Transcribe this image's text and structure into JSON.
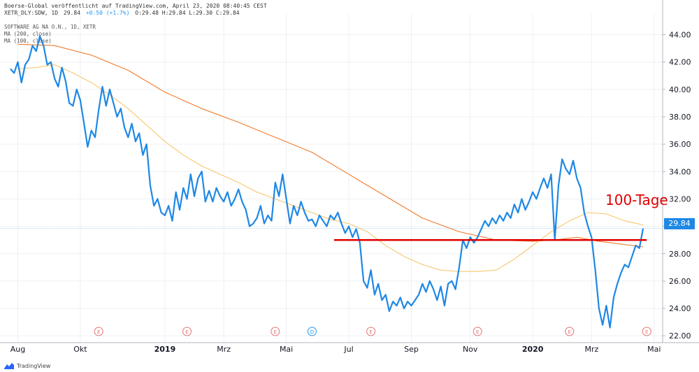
{
  "header": {
    "attribution": "Boerse-Global veröffentlicht auf TradingView.com, April 23, 2020 08:40:45 CEST",
    "symbol_line": "XETR_DLY:SDW, 1D",
    "last": "29.84",
    "change": "+0.50 (+1.7%)",
    "ohlc": "O:29.48 H:29.84 L:29.30 C:29.84"
  },
  "legend": {
    "title": "SOFTWARE AG NA O.N., 1D, XETR",
    "ma200": "MA (200, close)",
    "ma100": "MA (100, close)"
  },
  "annotation": "100-Tage",
  "price_badge": "29.84",
  "footer": {
    "brand": "TradingView"
  },
  "colors": {
    "price": "#1e88e5",
    "ma200": "#f07b2a",
    "ma100": "#f7c770",
    "support": "#e00000",
    "grid": "#eef0f3"
  },
  "chart_data": {
    "type": "line",
    "ylim": [
      21.5,
      45
    ],
    "y_ticks": [
      "44.00",
      "42.00",
      "40.00",
      "38.00",
      "36.00",
      "34.00",
      "32.00",
      "30.00",
      "28.00",
      "26.00",
      "24.00",
      "22.00"
    ],
    "x_ticks": [
      {
        "label": "Aug",
        "x": 2018.6
      },
      {
        "label": "Okt",
        "x": 2018.77
      },
      {
        "label": "2019",
        "x": 2019.0
      },
      {
        "label": "Mrz",
        "x": 2019.16
      },
      {
        "label": "Mai",
        "x": 2019.33
      },
      {
        "label": "Jul",
        "x": 2019.5
      },
      {
        "label": "Sep",
        "x": 2019.67
      },
      {
        "label": "Nov",
        "x": 2019.83
      },
      {
        "label": "2020",
        "x": 2020.0
      },
      {
        "label": "Mrz",
        "x": 2020.16
      },
      {
        "label": "Mai",
        "x": 2020.33
      }
    ],
    "event_markers": [
      {
        "label": "E",
        "x": 2018.82
      },
      {
        "label": "E",
        "x": 2019.06
      },
      {
        "label": "E",
        "x": 2019.3
      },
      {
        "label": "D",
        "x": 2019.4
      },
      {
        "label": "E",
        "x": 2019.56
      },
      {
        "label": "E",
        "x": 2019.85
      },
      {
        "label": "E",
        "x": 2020.1
      },
      {
        "label": "E",
        "x": 2020.31
      }
    ],
    "series": [
      {
        "name": "SOFTWARE AG NA O.N., 1D, XETR",
        "points": [
          [
            2018.58,
            41.5
          ],
          [
            2018.59,
            41.2
          ],
          [
            2018.6,
            42.0
          ],
          [
            2018.61,
            40.5
          ],
          [
            2018.62,
            41.8
          ],
          [
            2018.63,
            42.2
          ],
          [
            2018.64,
            43.2
          ],
          [
            2018.65,
            42.8
          ],
          [
            2018.66,
            43.9
          ],
          [
            2018.67,
            43.2
          ],
          [
            2018.68,
            41.8
          ],
          [
            2018.69,
            42.0
          ],
          [
            2018.7,
            40.8
          ],
          [
            2018.71,
            40.2
          ],
          [
            2018.72,
            41.6
          ],
          [
            2018.73,
            40.6
          ],
          [
            2018.74,
            39.0
          ],
          [
            2018.75,
            38.8
          ],
          [
            2018.76,
            40.0
          ],
          [
            2018.77,
            39.2
          ],
          [
            2018.78,
            37.5
          ],
          [
            2018.79,
            35.8
          ],
          [
            2018.8,
            37.0
          ],
          [
            2018.81,
            36.5
          ],
          [
            2018.82,
            38.5
          ],
          [
            2018.83,
            40.2
          ],
          [
            2018.84,
            38.8
          ],
          [
            2018.85,
            40.0
          ],
          [
            2018.86,
            39.0
          ],
          [
            2018.87,
            38.0
          ],
          [
            2018.88,
            38.6
          ],
          [
            2018.89,
            37.2
          ],
          [
            2018.9,
            36.5
          ],
          [
            2018.91,
            37.5
          ],
          [
            2018.92,
            36.2
          ],
          [
            2018.93,
            36.8
          ],
          [
            2018.94,
            35.2
          ],
          [
            2018.95,
            36.0
          ],
          [
            2018.96,
            33.0
          ],
          [
            2018.97,
            31.5
          ],
          [
            2018.98,
            32.0
          ],
          [
            2018.99,
            31.0
          ],
          [
            2019.0,
            30.8
          ],
          [
            2019.01,
            31.5
          ],
          [
            2019.02,
            30.4
          ],
          [
            2019.03,
            32.5
          ],
          [
            2019.04,
            31.2
          ],
          [
            2019.05,
            32.8
          ],
          [
            2019.06,
            32.0
          ],
          [
            2019.07,
            33.8
          ],
          [
            2019.08,
            32.2
          ],
          [
            2019.09,
            33.5
          ],
          [
            2019.1,
            34.0
          ],
          [
            2019.11,
            31.8
          ],
          [
            2019.12,
            32.6
          ],
          [
            2019.13,
            31.8
          ],
          [
            2019.14,
            32.8
          ],
          [
            2019.15,
            32.2
          ],
          [
            2019.16,
            31.8
          ],
          [
            2019.17,
            32.5
          ],
          [
            2019.18,
            31.5
          ],
          [
            2019.19,
            32.0
          ],
          [
            2019.2,
            32.7
          ],
          [
            2019.21,
            31.8
          ],
          [
            2019.22,
            31.2
          ],
          [
            2019.23,
            30.0
          ],
          [
            2019.24,
            30.2
          ],
          [
            2019.25,
            30.6
          ],
          [
            2019.26,
            31.5
          ],
          [
            2019.27,
            30.2
          ],
          [
            2019.28,
            30.8
          ],
          [
            2019.29,
            30.4
          ],
          [
            2019.3,
            33.2
          ],
          [
            2019.31,
            32.2
          ],
          [
            2019.32,
            33.8
          ],
          [
            2019.33,
            32.0
          ],
          [
            2019.34,
            30.2
          ],
          [
            2019.35,
            31.5
          ],
          [
            2019.36,
            30.8
          ],
          [
            2019.37,
            31.8
          ],
          [
            2019.38,
            31.0
          ],
          [
            2019.39,
            30.4
          ],
          [
            2019.4,
            30.5
          ],
          [
            2019.41,
            30.0
          ],
          [
            2019.42,
            30.8
          ],
          [
            2019.43,
            30.4
          ],
          [
            2019.44,
            30.0
          ],
          [
            2019.45,
            30.8
          ],
          [
            2019.46,
            30.5
          ],
          [
            2019.47,
            31.0
          ],
          [
            2019.48,
            30.2
          ],
          [
            2019.49,
            29.5
          ],
          [
            2019.5,
            30.0
          ],
          [
            2019.51,
            29.2
          ],
          [
            2019.52,
            29.8
          ],
          [
            2019.53,
            28.8
          ],
          [
            2019.54,
            26.0
          ],
          [
            2019.55,
            25.5
          ],
          [
            2019.56,
            26.8
          ],
          [
            2019.57,
            25.0
          ],
          [
            2019.58,
            25.8
          ],
          [
            2019.59,
            24.6
          ],
          [
            2019.6,
            25.0
          ],
          [
            2019.61,
            23.8
          ],
          [
            2019.62,
            24.5
          ],
          [
            2019.63,
            24.2
          ],
          [
            2019.64,
            24.8
          ],
          [
            2019.65,
            24.0
          ],
          [
            2019.66,
            24.5
          ],
          [
            2019.67,
            24.2
          ],
          [
            2019.68,
            24.6
          ],
          [
            2019.69,
            25.0
          ],
          [
            2019.7,
            25.8
          ],
          [
            2019.71,
            25.2
          ],
          [
            2019.72,
            26.0
          ],
          [
            2019.73,
            25.4
          ],
          [
            2019.74,
            24.6
          ],
          [
            2019.75,
            25.6
          ],
          [
            2019.76,
            24.2
          ],
          [
            2019.77,
            25.8
          ],
          [
            2019.78,
            26.0
          ],
          [
            2019.79,
            25.4
          ],
          [
            2019.8,
            27.0
          ],
          [
            2019.81,
            29.0
          ],
          [
            2019.82,
            28.4
          ],
          [
            2019.83,
            29.2
          ],
          [
            2019.84,
            28.8
          ],
          [
            2019.85,
            29.2
          ],
          [
            2019.86,
            29.8
          ],
          [
            2019.87,
            30.4
          ],
          [
            2019.88,
            30.0
          ],
          [
            2019.89,
            30.6
          ],
          [
            2019.9,
            30.2
          ],
          [
            2019.91,
            30.8
          ],
          [
            2019.92,
            30.4
          ],
          [
            2019.93,
            31.0
          ],
          [
            2019.94,
            30.6
          ],
          [
            2019.95,
            31.6
          ],
          [
            2019.96,
            31.0
          ],
          [
            2019.97,
            32.0
          ],
          [
            2019.98,
            31.2
          ],
          [
            2019.99,
            31.8
          ],
          [
            2020.0,
            32.5
          ],
          [
            2020.01,
            32.0
          ],
          [
            2020.02,
            32.8
          ],
          [
            2020.03,
            33.5
          ],
          [
            2020.04,
            32.8
          ],
          [
            2020.05,
            33.8
          ],
          [
            2020.06,
            29.0
          ],
          [
            2020.07,
            33.0
          ],
          [
            2020.08,
            34.9
          ],
          [
            2020.09,
            34.2
          ],
          [
            2020.1,
            33.8
          ],
          [
            2020.11,
            34.8
          ],
          [
            2020.12,
            33.5
          ],
          [
            2020.13,
            32.8
          ],
          [
            2020.14,
            31.0
          ],
          [
            2020.15,
            30.0
          ],
          [
            2020.16,
            29.2
          ],
          [
            2020.17,
            26.8
          ],
          [
            2020.18,
            24.0
          ],
          [
            2020.19,
            22.8
          ],
          [
            2020.2,
            24.2
          ],
          [
            2020.21,
            22.6
          ],
          [
            2020.22,
            24.8
          ],
          [
            2020.23,
            25.8
          ],
          [
            2020.24,
            26.6
          ],
          [
            2020.25,
            27.2
          ],
          [
            2020.26,
            27.0
          ],
          [
            2020.27,
            27.8
          ],
          [
            2020.28,
            28.6
          ],
          [
            2020.29,
            28.4
          ],
          [
            2020.3,
            29.84
          ]
        ]
      },
      {
        "name": "MA (200, close)",
        "points": [
          [
            2018.6,
            43.3
          ],
          [
            2018.7,
            43.2
          ],
          [
            2018.8,
            42.5
          ],
          [
            2018.9,
            41.4
          ],
          [
            2019.0,
            39.8
          ],
          [
            2019.1,
            38.6
          ],
          [
            2019.2,
            37.6
          ],
          [
            2019.3,
            36.5
          ],
          [
            2019.4,
            35.4
          ],
          [
            2019.5,
            33.8
          ],
          [
            2019.6,
            32.2
          ],
          [
            2019.7,
            30.6
          ],
          [
            2019.8,
            29.6
          ],
          [
            2019.9,
            29.0
          ],
          [
            2020.0,
            28.9
          ],
          [
            2020.06,
            29.0
          ],
          [
            2020.12,
            29.2
          ],
          [
            2020.18,
            28.9
          ],
          [
            2020.24,
            28.7
          ],
          [
            2020.3,
            28.5
          ]
        ]
      },
      {
        "name": "MA (100, close)",
        "points": [
          [
            2018.6,
            41.5
          ],
          [
            2018.65,
            41.6
          ],
          [
            2018.7,
            41.8
          ],
          [
            2018.75,
            41.2
          ],
          [
            2018.8,
            40.5
          ],
          [
            2018.85,
            39.6
          ],
          [
            2018.9,
            38.6
          ],
          [
            2018.95,
            37.4
          ],
          [
            2019.0,
            36.2
          ],
          [
            2019.05,
            35.2
          ],
          [
            2019.1,
            34.4
          ],
          [
            2019.15,
            33.8
          ],
          [
            2019.2,
            33.2
          ],
          [
            2019.25,
            32.5
          ],
          [
            2019.3,
            32.0
          ],
          [
            2019.35,
            31.5
          ],
          [
            2019.4,
            31.0
          ],
          [
            2019.45,
            30.5
          ],
          [
            2019.5,
            30.2
          ],
          [
            2019.55,
            29.6
          ],
          [
            2019.6,
            28.6
          ],
          [
            2019.65,
            27.8
          ],
          [
            2019.7,
            27.2
          ],
          [
            2019.75,
            26.8
          ],
          [
            2019.8,
            26.7
          ],
          [
            2019.85,
            26.7
          ],
          [
            2019.9,
            26.8
          ],
          [
            2019.95,
            27.6
          ],
          [
            2020.0,
            28.6
          ],
          [
            2020.05,
            29.6
          ],
          [
            2020.1,
            30.4
          ],
          [
            2020.15,
            31.0
          ],
          [
            2020.2,
            30.9
          ],
          [
            2020.25,
            30.4
          ],
          [
            2020.3,
            30.1
          ]
        ]
      }
    ],
    "horizontal_lines": [
      {
        "name": "support",
        "y": 29.0,
        "x_start": 2019.46,
        "x_end": 2020.31
      }
    ],
    "last_price_line": 29.84
  }
}
